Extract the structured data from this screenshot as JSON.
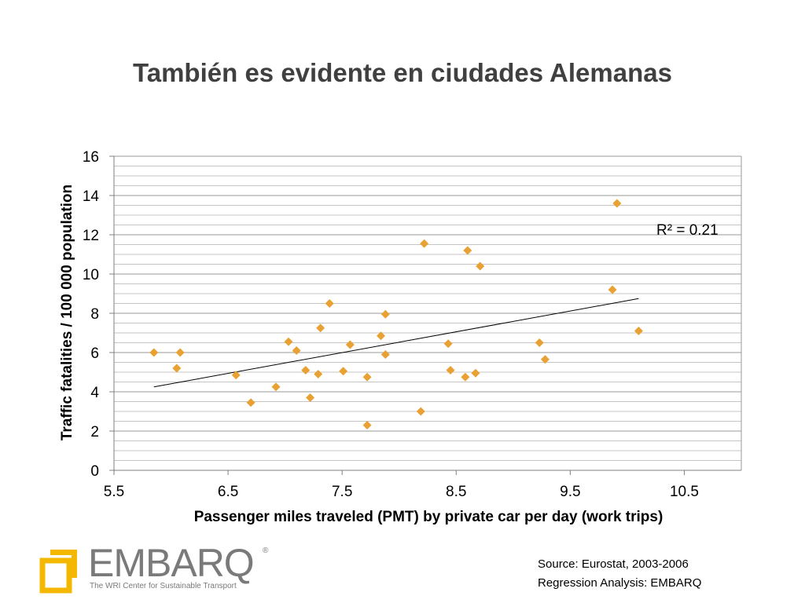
{
  "slide": {
    "title": "También es evidente en ciudades Alemanas"
  },
  "chart_data": {
    "type": "scatter",
    "xlabel": "Passenger miles traveled (PMT) by private car per day (work trips)",
    "ylabel": "Traffic fatalities / 100 000 population",
    "xlim": [
      5.5,
      11.0
    ],
    "ylim": [
      0,
      16
    ],
    "x_ticks": [
      "5.5",
      "6.5",
      "7.5",
      "8.5",
      "9.5",
      "10.5"
    ],
    "x_tick_values": [
      5.5,
      6.5,
      7.5,
      8.5,
      9.5,
      10.5
    ],
    "y_ticks": [
      "0",
      "2",
      "4",
      "6",
      "8",
      "10",
      "12",
      "14",
      "16"
    ],
    "y_tick_values": [
      0,
      2,
      4,
      6,
      8,
      10,
      12,
      14,
      16
    ],
    "grid": true,
    "marker": "diamond",
    "marker_color": "#e8a132",
    "trendline": {
      "type": "linear",
      "x": [
        5.85,
        10.1
      ],
      "y": [
        4.25,
        8.75
      ],
      "r_squared_label": "R² = 0.21"
    },
    "points": [
      [
        5.85,
        6.0
      ],
      [
        6.05,
        5.2
      ],
      [
        6.08,
        6.0
      ],
      [
        6.57,
        4.85
      ],
      [
        6.7,
        3.45
      ],
      [
        6.92,
        4.25
      ],
      [
        7.03,
        6.55
      ],
      [
        7.1,
        6.1
      ],
      [
        7.18,
        5.1
      ],
      [
        7.22,
        3.7
      ],
      [
        7.29,
        4.9
      ],
      [
        7.31,
        7.25
      ],
      [
        7.39,
        8.5
      ],
      [
        7.51,
        5.05
      ],
      [
        7.57,
        6.4
      ],
      [
        7.72,
        4.75
      ],
      [
        7.72,
        2.3
      ],
      [
        7.84,
        6.85
      ],
      [
        7.88,
        7.95
      ],
      [
        7.88,
        5.9
      ],
      [
        8.19,
        3.0
      ],
      [
        8.22,
        11.55
      ],
      [
        8.43,
        6.45
      ],
      [
        8.45,
        5.1
      ],
      [
        8.58,
        4.75
      ],
      [
        8.6,
        11.2
      ],
      [
        8.67,
        4.95
      ],
      [
        8.71,
        10.4
      ],
      [
        9.23,
        6.5
      ],
      [
        9.28,
        5.65
      ],
      [
        9.87,
        9.2
      ],
      [
        9.91,
        13.6
      ],
      [
        10.1,
        7.1
      ]
    ]
  },
  "footer": {
    "source_line1": "Source: Eurostat, 2003-2006",
    "source_line2": "Regression Analysis: EMBARQ",
    "logo_word": "EMBARQ",
    "logo_registered": "®",
    "logo_tagline": "The WRI Center for Sustainable Transport",
    "logo_color": "#f5b800"
  }
}
